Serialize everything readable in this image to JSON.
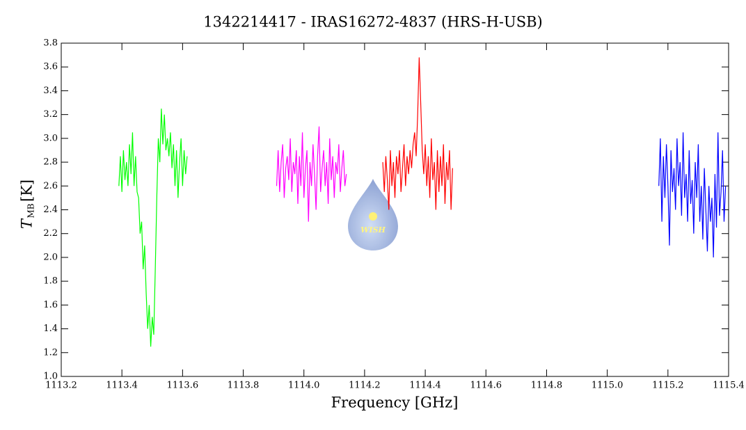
{
  "chart_data": {
    "type": "line",
    "title": "1342214417 - IRAS16272-4837 (HRS-H-USB)",
    "xlabel": "Frequency [GHz]",
    "ylabel": {
      "symbol": "T",
      "subscript": "MB",
      "unit": "[K]"
    },
    "logo": "WISH",
    "xlim": [
      1113.2,
      1115.4
    ],
    "xticks": [
      1113.2,
      1113.4,
      1113.6,
      1113.8,
      {
        "value": 1114,
        "label": "1114.0"
      },
      1114.2,
      1114.4,
      1114.6,
      1114.8,
      {
        "value": 1115,
        "label": "1115.0"
      },
      1115.2,
      1115.4
    ],
    "ylim": [
      1,
      3.8
    ],
    "yticks": [
      {
        "value": 1,
        "label": "1.0"
      },
      1.2,
      1.4,
      1.6,
      1.8,
      {
        "value": 2,
        "label": "2.0"
      },
      2.2,
      2.4,
      2.6,
      2.8,
      {
        "value": 3,
        "label": "3.0"
      },
      3.2,
      3.4,
      3.6,
      3.8
    ],
    "series": [
      {
        "color": "#00ff00",
        "x": [
          1113.39,
          1113.395,
          1113.4,
          1113.405,
          1113.41,
          1113.415,
          1113.42,
          1113.425,
          1113.43,
          1113.435,
          1113.44,
          1113.445,
          1113.45,
          1113.455,
          1113.46,
          1113.465,
          1113.47,
          1113.475,
          1113.48,
          1113.485,
          1113.49,
          1113.495,
          1113.5,
          1113.505,
          1113.51,
          1113.515,
          1113.52,
          1113.525,
          1113.53,
          1113.535,
          1113.54,
          1113.545,
          1113.55,
          1113.555,
          1113.56,
          1113.565,
          1113.57,
          1113.575,
          1113.58,
          1113.585,
          1113.59,
          1113.595,
          1113.6,
          1113.605,
          1113.61,
          1113.615
        ],
        "values": [
          2.6,
          2.85,
          2.55,
          2.9,
          2.65,
          2.8,
          2.6,
          2.95,
          2.7,
          3.05,
          2.6,
          2.85,
          2.55,
          2.5,
          2.2,
          2.3,
          1.9,
          2.1,
          1.7,
          1.4,
          1.6,
          1.25,
          1.5,
          1.35,
          1.9,
          2.5,
          3.0,
          2.8,
          3.25,
          2.95,
          3.2,
          2.9,
          3.0,
          2.85,
          3.05,
          2.75,
          2.95,
          2.6,
          2.9,
          2.5,
          2.8,
          3.0,
          2.6,
          2.9,
          2.7,
          2.85
        ]
      },
      {
        "color": "#ff00ff",
        "x": [
          1113.91,
          1113.915,
          1113.92,
          1113.925,
          1113.93,
          1113.935,
          1113.94,
          1113.945,
          1113.95,
          1113.955,
          1113.96,
          1113.965,
          1113.97,
          1113.975,
          1113.98,
          1113.985,
          1113.99,
          1113.995,
          1114.0,
          1114.005,
          1114.01,
          1114.015,
          1114.02,
          1114.025,
          1114.03,
          1114.035,
          1114.04,
          1114.045,
          1114.05,
          1114.055,
          1114.06,
          1114.065,
          1114.07,
          1114.075,
          1114.08,
          1114.085,
          1114.09,
          1114.095,
          1114.1,
          1114.105,
          1114.11,
          1114.115,
          1114.12,
          1114.125,
          1114.13,
          1114.135,
          1114.14
        ],
        "values": [
          2.6,
          2.9,
          2.55,
          2.8,
          2.95,
          2.5,
          2.75,
          2.85,
          2.65,
          3.0,
          2.55,
          2.8,
          2.7,
          2.9,
          2.45,
          2.85,
          2.6,
          3.05,
          2.5,
          2.75,
          2.9,
          2.3,
          2.8,
          2.6,
          2.95,
          2.7,
          2.4,
          2.85,
          3.1,
          2.55,
          2.75,
          2.9,
          2.6,
          2.8,
          2.45,
          3.0,
          2.65,
          2.85,
          2.5,
          2.8,
          2.7,
          2.95,
          2.55,
          2.75,
          2.9,
          2.6,
          2.7
        ]
      },
      {
        "color": "#ff0000",
        "x": [
          1114.26,
          1114.265,
          1114.27,
          1114.275,
          1114.28,
          1114.285,
          1114.29,
          1114.295,
          1114.3,
          1114.305,
          1114.31,
          1114.315,
          1114.32,
          1114.325,
          1114.33,
          1114.335,
          1114.34,
          1114.345,
          1114.35,
          1114.355,
          1114.36,
          1114.365,
          1114.37,
          1114.375,
          1114.38,
          1114.385,
          1114.39,
          1114.395,
          1114.4,
          1114.405,
          1114.41,
          1114.415,
          1114.42,
          1114.425,
          1114.43,
          1114.435,
          1114.44,
          1114.445,
          1114.45,
          1114.455,
          1114.46,
          1114.465,
          1114.47,
          1114.475,
          1114.48,
          1114.485,
          1114.49
        ],
        "values": [
          2.8,
          2.55,
          2.85,
          2.65,
          2.4,
          2.9,
          2.6,
          2.8,
          2.5,
          2.85,
          2.7,
          2.9,
          2.55,
          2.75,
          2.95,
          2.6,
          2.85,
          2.7,
          2.9,
          2.75,
          2.95,
          3.05,
          2.85,
          3.2,
          3.68,
          3.3,
          2.9,
          2.7,
          2.95,
          2.6,
          2.85,
          2.5,
          3.0,
          2.65,
          2.8,
          2.4,
          2.9,
          2.55,
          2.85,
          2.6,
          2.95,
          2.45,
          2.8,
          2.65,
          2.9,
          2.4,
          2.75
        ]
      },
      {
        "color": "#0000ff",
        "x": [
          1115.17,
          1115.175,
          1115.18,
          1115.185,
          1115.19,
          1115.195,
          1115.2,
          1115.205,
          1115.21,
          1115.215,
          1115.22,
          1115.225,
          1115.23,
          1115.235,
          1115.24,
          1115.245,
          1115.25,
          1115.255,
          1115.26,
          1115.265,
          1115.27,
          1115.275,
          1115.28,
          1115.285,
          1115.29,
          1115.295,
          1115.3,
          1115.305,
          1115.31,
          1115.315,
          1115.32,
          1115.325,
          1115.33,
          1115.335,
          1115.34,
          1115.345,
          1115.35,
          1115.355,
          1115.36,
          1115.365,
          1115.37,
          1115.375,
          1115.38,
          1115.385,
          1115.39
        ],
        "values": [
          2.6,
          3.0,
          2.3,
          2.85,
          2.5,
          2.95,
          2.6,
          2.1,
          2.9,
          2.55,
          2.75,
          2.4,
          3.0,
          2.6,
          2.8,
          2.35,
          3.05,
          2.5,
          2.7,
          2.3,
          2.9,
          2.45,
          2.65,
          2.2,
          2.8,
          2.5,
          2.95,
          2.3,
          2.6,
          2.15,
          2.75,
          2.4,
          2.05,
          2.6,
          2.3,
          2.5,
          2.0,
          2.7,
          2.25,
          3.05,
          2.35,
          2.55,
          2.9,
          2.3,
          2.6
        ]
      }
    ]
  }
}
